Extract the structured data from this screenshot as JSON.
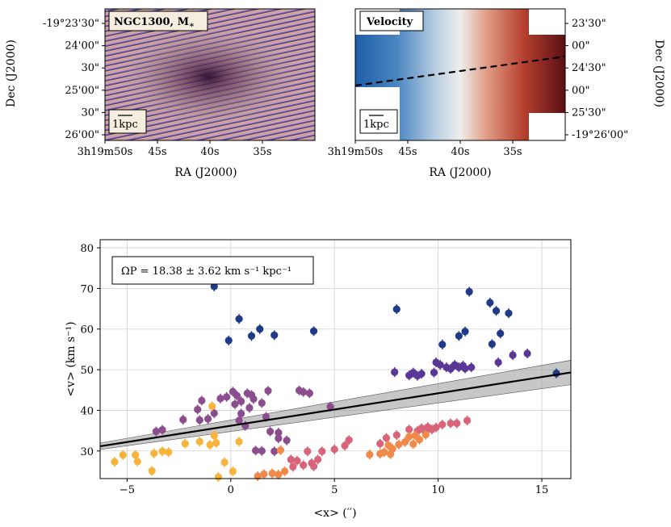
{
  "colors": {
    "blue": "#1f3b88",
    "violet": "#5a3797",
    "plum": "#8b4d8e",
    "salmon": "#d8647a",
    "orange": "#ef8a4a",
    "yellow": "#f8b33c",
    "fit_line": "#000000",
    "band": "#999999"
  },
  "top_left": {
    "label": "NGC1300, M",
    "label_sub": "∗",
    "scale": "1kpc",
    "xlabel": "RA (J2000)",
    "ylabel": "Dec (J2000)",
    "xticks": [
      "3h19m50s",
      "45s",
      "40s",
      "35s"
    ],
    "yticks": [
      "-19°23'30\"",
      "24'00\"",
      "30\"",
      "25'00\"",
      "30\"",
      "26'00\""
    ]
  },
  "top_right": {
    "label": "Velocity",
    "scale": "1kpc",
    "xlabel": "RA (J2000)",
    "ylabel": "Dec (J2000)",
    "xticks": [
      "3h19m50s",
      "45s",
      "40s",
      "35s"
    ],
    "yticks": [
      "23'30\"",
      "00\"",
      "24'30\"",
      "00\"",
      "25'30\"",
      "-19°26'00\""
    ]
  },
  "chart_data": {
    "type": "scatter",
    "xlabel": "<x> (′′)",
    "ylabel": "<v> (km s⁻¹)",
    "xlim": [
      -6.3,
      16.4
    ],
    "ylim": [
      23.2,
      82
    ],
    "xticks": [
      -5,
      0,
      5,
      10,
      15
    ],
    "yticks": [
      30,
      40,
      50,
      60,
      70,
      80
    ],
    "grid": true,
    "annotation": "ΩP = 18.38 ± 3.62 km s⁻¹ kpc⁻¹",
    "fit": {
      "slope": 0.8,
      "intercept": 36.2,
      "x_range": [
        -6.3,
        16.4
      ],
      "err_left": 0.8,
      "err_right": 3.0
    },
    "series": [
      {
        "name": "blue",
        "color_key": "blue",
        "points": [
          [
            -0.8,
            70.5
          ],
          [
            -0.1,
            57.2
          ],
          [
            0.4,
            62.5
          ],
          [
            1.0,
            58.3
          ],
          [
            1.4,
            60.0
          ],
          [
            2.1,
            58.5
          ],
          [
            4.0,
            59.5
          ],
          [
            8.0,
            64.9
          ],
          [
            10.2,
            56.2
          ],
          [
            11.0,
            58.3
          ],
          [
            11.3,
            59.4
          ],
          [
            11.5,
            69.2
          ],
          [
            12.5,
            66.5
          ],
          [
            12.6,
            56.3
          ],
          [
            12.8,
            64.5
          ],
          [
            13.0,
            58.9
          ],
          [
            13.4,
            63.9
          ],
          [
            15.7,
            49.1
          ]
        ]
      },
      {
        "name": "violet",
        "color_key": "violet",
        "points": [
          [
            7.9,
            49.4
          ],
          [
            8.6,
            48.6
          ],
          [
            8.8,
            49.3
          ],
          [
            9.0,
            48.5
          ],
          [
            9.2,
            49.0
          ],
          [
            9.8,
            49.3
          ],
          [
            9.9,
            51.8
          ],
          [
            10.1,
            51.2
          ],
          [
            10.4,
            50.6
          ],
          [
            10.6,
            50.2
          ],
          [
            10.8,
            51.2
          ],
          [
            11.0,
            50.6
          ],
          [
            11.2,
            51.0
          ],
          [
            11.3,
            50.3
          ],
          [
            11.6,
            50.6
          ],
          [
            12.9,
            51.8
          ],
          [
            13.6,
            53.6
          ],
          [
            14.3,
            54.0
          ]
        ]
      },
      {
        "name": "plum",
        "color_key": "plum",
        "points": [
          [
            -3.6,
            34.8
          ],
          [
            -3.3,
            35.2
          ],
          [
            -2.3,
            37.7
          ],
          [
            -1.6,
            40.2
          ],
          [
            -1.5,
            37.6
          ],
          [
            -1.4,
            42.4
          ],
          [
            -1.1,
            37.9
          ],
          [
            -0.8,
            39.3
          ],
          [
            -0.5,
            42.9
          ],
          [
            -0.2,
            43.3
          ],
          [
            0.1,
            44.6
          ],
          [
            0.3,
            43.6
          ],
          [
            0.5,
            42.2
          ],
          [
            0.8,
            44.2
          ],
          [
            1.0,
            43.8
          ],
          [
            0.2,
            41.5
          ],
          [
            0.5,
            39.2
          ],
          [
            0.9,
            40.6
          ],
          [
            1.1,
            42.8
          ],
          [
            1.5,
            41.8
          ],
          [
            1.7,
            38.4
          ],
          [
            1.8,
            44.8
          ],
          [
            0.4,
            37.5
          ],
          [
            0.7,
            36.2
          ],
          [
            1.5,
            30.0
          ],
          [
            1.2,
            30.1
          ],
          [
            2.1,
            29.9
          ],
          [
            1.9,
            34.8
          ],
          [
            2.3,
            34.5
          ],
          [
            2.3,
            33.1
          ],
          [
            2.7,
            32.6
          ],
          [
            3.3,
            44.9
          ],
          [
            3.5,
            44.5
          ],
          [
            3.8,
            44.2
          ],
          [
            4.8,
            40.9
          ]
        ]
      },
      {
        "name": "salmon",
        "color_key": "salmon",
        "points": [
          [
            3.7,
            29.9
          ],
          [
            4.2,
            27.9
          ],
          [
            4.4,
            29.9
          ],
          [
            5.0,
            30.4
          ],
          [
            5.5,
            31.3
          ],
          [
            5.7,
            32.7
          ],
          [
            7.2,
            31.8
          ],
          [
            7.5,
            33.2
          ],
          [
            8.0,
            33.9
          ],
          [
            8.6,
            35.3
          ],
          [
            9.0,
            34.9
          ],
          [
            9.2,
            35.6
          ],
          [
            9.4,
            34.8
          ],
          [
            9.5,
            35.9
          ],
          [
            9.7,
            35.3
          ],
          [
            9.9,
            35.8
          ],
          [
            10.2,
            36.5
          ],
          [
            10.6,
            36.8
          ],
          [
            10.9,
            36.8
          ],
          [
            11.4,
            37.5
          ],
          [
            3.5,
            26.5
          ],
          [
            3.9,
            27.0
          ],
          [
            3.2,
            27.6
          ],
          [
            2.9,
            27.9
          ],
          [
            3.0,
            26.1
          ],
          [
            4.0,
            26.2
          ]
        ]
      },
      {
        "name": "orange",
        "color_key": "orange",
        "points": [
          [
            6.7,
            29.1
          ],
          [
            7.2,
            29.3
          ],
          [
            7.4,
            29.7
          ],
          [
            7.6,
            31.4
          ],
          [
            7.8,
            30.5
          ],
          [
            8.1,
            31.6
          ],
          [
            8.4,
            32.2
          ],
          [
            8.6,
            33.5
          ],
          [
            8.9,
            33.8
          ],
          [
            9.1,
            32.8
          ],
          [
            8.8,
            31.7
          ],
          [
            9.4,
            34.0
          ],
          [
            7.7,
            29.2
          ],
          [
            2.4,
            30.2
          ],
          [
            1.3,
            23.8
          ],
          [
            1.6,
            24.3
          ],
          [
            2.0,
            24.5
          ],
          [
            2.3,
            24.2
          ],
          [
            2.6,
            25.0
          ]
        ]
      },
      {
        "name": "yellow",
        "color_key": "yellow",
        "points": [
          [
            -5.6,
            27.3
          ],
          [
            -5.2,
            29.0
          ],
          [
            -4.6,
            29.0
          ],
          [
            -4.5,
            27.4
          ],
          [
            -3.8,
            25.1
          ],
          [
            -3.7,
            29.4
          ],
          [
            -3.3,
            29.9
          ],
          [
            -3.0,
            29.7
          ],
          [
            -2.2,
            31.8
          ],
          [
            -1.5,
            32.3
          ],
          [
            -1.0,
            31.5
          ],
          [
            -0.9,
            41.0
          ],
          [
            -0.8,
            33.8
          ],
          [
            -0.7,
            32.0
          ],
          [
            -0.3,
            27.2
          ],
          [
            0.4,
            32.3
          ],
          [
            0.1,
            25.0
          ],
          [
            -0.6,
            23.6
          ]
        ]
      }
    ]
  }
}
